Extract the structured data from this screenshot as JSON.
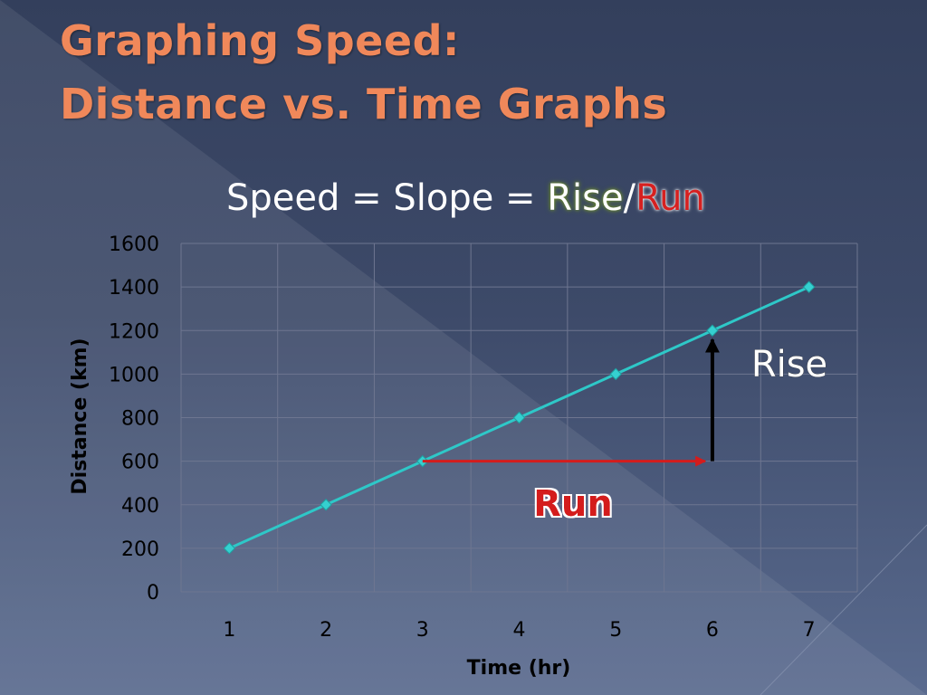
{
  "slide": {
    "title_line1": "Graphing Speed:",
    "title_line2": "Distance vs. Time Graphs",
    "formula": {
      "prefix": "Speed = Slope = ",
      "rise": "Rise",
      "slash": "/",
      "run": "Run"
    },
    "annotations": {
      "rise_label": "Rise",
      "run_label": "Run"
    }
  },
  "colors": {
    "title": "#f0885a",
    "line": "#2ec8c8",
    "marker": "#35d0d0",
    "run_arrow": "#d41c1c",
    "rise_arrow": "#000000",
    "grid": "#6e7690"
  },
  "chart_data": {
    "type": "line",
    "title": "",
    "xlabel": "Time (hr)",
    "ylabel": "Distance (km)",
    "categories": [
      "1",
      "2",
      "3",
      "4",
      "5",
      "6",
      "7"
    ],
    "series": [
      {
        "values": [
          200,
          400,
          600,
          800,
          1000,
          1200,
          1400
        ]
      }
    ],
    "ylim": [
      0,
      1600
    ],
    "yticks": [
      0,
      200,
      400,
      600,
      800,
      1000,
      1200,
      1400,
      1600
    ],
    "grid": true,
    "legend": "none",
    "arrows": [
      {
        "name": "run",
        "from": {
          "x": 3,
          "y": 600
        },
        "to": {
          "x": 6,
          "y": 600
        }
      },
      {
        "name": "rise",
        "from": {
          "x": 6,
          "y": 600
        },
        "to": {
          "x": 6,
          "y": 1200
        }
      }
    ]
  }
}
